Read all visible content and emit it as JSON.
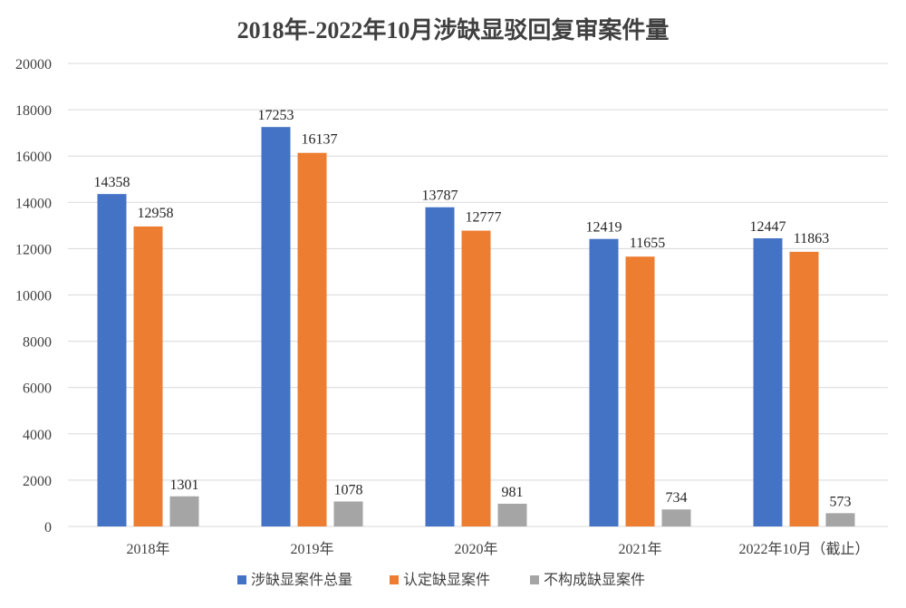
{
  "chart_data": {
    "type": "bar",
    "title": "2018年-2022年10月涉缺显驳回复审案件量",
    "categories": [
      "2018年",
      "2019年",
      "2020年",
      "2021年",
      "2022年10月（截止）"
    ],
    "series": [
      {
        "name": "涉缺显案件总量",
        "color": "#4472C4",
        "values": [
          14358,
          17253,
          13787,
          12419,
          12447
        ]
      },
      {
        "name": "认定缺显案件",
        "color": "#ED7D31",
        "values": [
          12958,
          16137,
          12777,
          11655,
          11863
        ]
      },
      {
        "name": "不构成缺显案件",
        "color": "#A5A5A5",
        "values": [
          1301,
          1078,
          981,
          734,
          573
        ]
      }
    ],
    "ylim": [
      0,
      20000
    ],
    "yticks": [
      "0",
      "2000",
      "4000",
      "6000",
      "8000",
      "10000",
      "12000",
      "14000",
      "16000",
      "18000",
      "20000"
    ],
    "grid": true,
    "legend": "bottom",
    "xlabel": "",
    "ylabel": ""
  }
}
